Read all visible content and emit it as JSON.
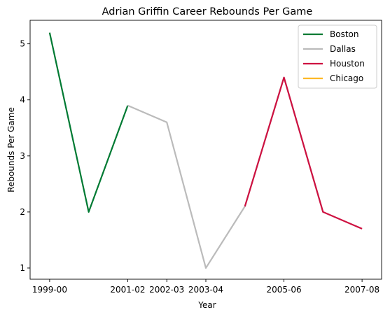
{
  "chart_data": {
    "type": "line",
    "title": "Adrian Griffin Career Rebounds Per Game",
    "xlabel": "Year",
    "ylabel": "Rebounds Per Game",
    "x_tick_labels": [
      "1999-00",
      "2001-02",
      "2002-03",
      "2003-04",
      "2005-06",
      "2007-08"
    ],
    "x_tick_positions": [
      0,
      2,
      3,
      4,
      6,
      8
    ],
    "y_ticks": [
      1,
      2,
      3,
      4,
      5
    ],
    "xlim": [
      -0.5,
      8.5
    ],
    "ylim": [
      0.8,
      5.42
    ],
    "grid": false,
    "legend_position": "top-right",
    "series": [
      {
        "name": "Boston",
        "color": "#007A33",
        "points": [
          [
            0,
            5.2
          ],
          [
            1,
            2.0
          ],
          [
            2,
            3.9
          ]
        ]
      },
      {
        "name": "Dallas",
        "color": "#BBBBBB",
        "points": [
          [
            2,
            3.9
          ],
          [
            3,
            3.6
          ],
          [
            4,
            1.0
          ],
          [
            5,
            2.1
          ],
          [
            6,
            4.4
          ],
          [
            7,
            2.0
          ]
        ]
      },
      {
        "name": "Houston",
        "color": "#CE1141",
        "points": [
          [
            5,
            2.1
          ],
          [
            6,
            4.4
          ],
          [
            7,
            2.0
          ],
          [
            8,
            1.7
          ]
        ]
      },
      {
        "name": "Chicago",
        "color": "#FDB927",
        "points": []
      }
    ]
  }
}
